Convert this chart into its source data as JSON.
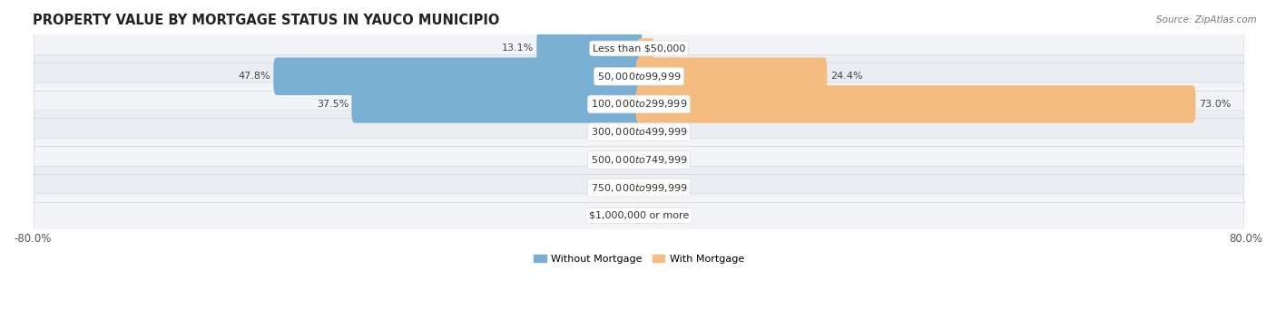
{
  "title": "PROPERTY VALUE BY MORTGAGE STATUS IN YAUCO MUNICIPIO",
  "source": "Source: ZipAtlas.com",
  "categories": [
    "Less than $50,000",
    "$50,000 to $99,999",
    "$100,000 to $299,999",
    "$300,000 to $499,999",
    "$500,000 to $749,999",
    "$750,000 to $999,999",
    "$1,000,000 or more"
  ],
  "without_mortgage": [
    13.1,
    47.8,
    37.5,
    0.54,
    0.34,
    0.5,
    0.28
  ],
  "with_mortgage": [
    1.8,
    24.4,
    73.0,
    0.53,
    0.0,
    0.22,
    0.0
  ],
  "without_mortgage_color": "#7aafd4",
  "with_mortgage_color": "#f5bc80",
  "xlim": [
    -80,
    80
  ],
  "bar_height": 0.55,
  "row_colors": [
    "#f0f2f5",
    "#e8eaee"
  ],
  "title_fontsize": 10.5,
  "label_fontsize": 8,
  "category_fontsize": 8,
  "legend_fontsize": 8,
  "source_fontsize": 7.5
}
